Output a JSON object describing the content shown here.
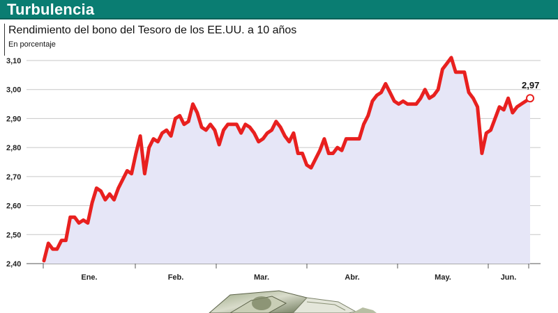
{
  "header": {
    "title": "Turbulencia"
  },
  "chart_data": {
    "type": "line",
    "title": "Rendimiento del bono del Tesoro de los EE.UU. a 10 años",
    "subtitle": "En porcentaje",
    "ylim": [
      2.4,
      3.1
    ],
    "yticks": [
      "3,10",
      "3,00",
      "2,90",
      "2,80",
      "2,70",
      "2,60",
      "2,50",
      "2,40"
    ],
    "ytick_values": [
      3.1,
      3.0,
      2.9,
      2.8,
      2.7,
      2.6,
      2.5,
      2.4
    ],
    "grid": true,
    "months": [
      "Ene.",
      "Feb.",
      "Mar.",
      "Abr.",
      "May.",
      "Jun."
    ],
    "end_label": "2,97",
    "colors": {
      "line": "#e8201f",
      "area": "#e6e6f7",
      "grid": "#c7c7c7",
      "header": "#0a7d72"
    },
    "values": [
      2.41,
      2.47,
      2.45,
      2.45,
      2.48,
      2.48,
      2.56,
      2.56,
      2.54,
      2.55,
      2.54,
      2.61,
      2.66,
      2.65,
      2.62,
      2.64,
      2.62,
      2.66,
      2.69,
      2.72,
      2.71,
      2.78,
      2.84,
      2.71,
      2.8,
      2.83,
      2.82,
      2.85,
      2.86,
      2.84,
      2.9,
      2.91,
      2.88,
      2.89,
      2.95,
      2.92,
      2.87,
      2.86,
      2.88,
      2.86,
      2.81,
      2.86,
      2.88,
      2.88,
      2.88,
      2.85,
      2.88,
      2.87,
      2.85,
      2.82,
      2.83,
      2.85,
      2.86,
      2.89,
      2.87,
      2.84,
      2.82,
      2.85,
      2.78,
      2.78,
      2.74,
      2.73,
      2.76,
      2.79,
      2.83,
      2.78,
      2.78,
      2.8,
      2.79,
      2.83,
      2.83,
      2.83,
      2.83,
      2.88,
      2.91,
      2.96,
      2.98,
      2.99,
      3.02,
      2.99,
      2.96,
      2.95,
      2.96,
      2.95,
      2.95,
      2.95,
      2.97,
      3.0,
      2.97,
      2.98,
      3.0,
      3.07,
      3.09,
      3.11,
      3.06,
      3.06,
      3.06,
      2.99,
      2.97,
      2.94,
      2.78,
      2.85,
      2.86,
      2.9,
      2.94,
      2.93,
      2.97,
      2.92,
      2.94,
      2.95,
      2.96,
      2.97
    ]
  }
}
